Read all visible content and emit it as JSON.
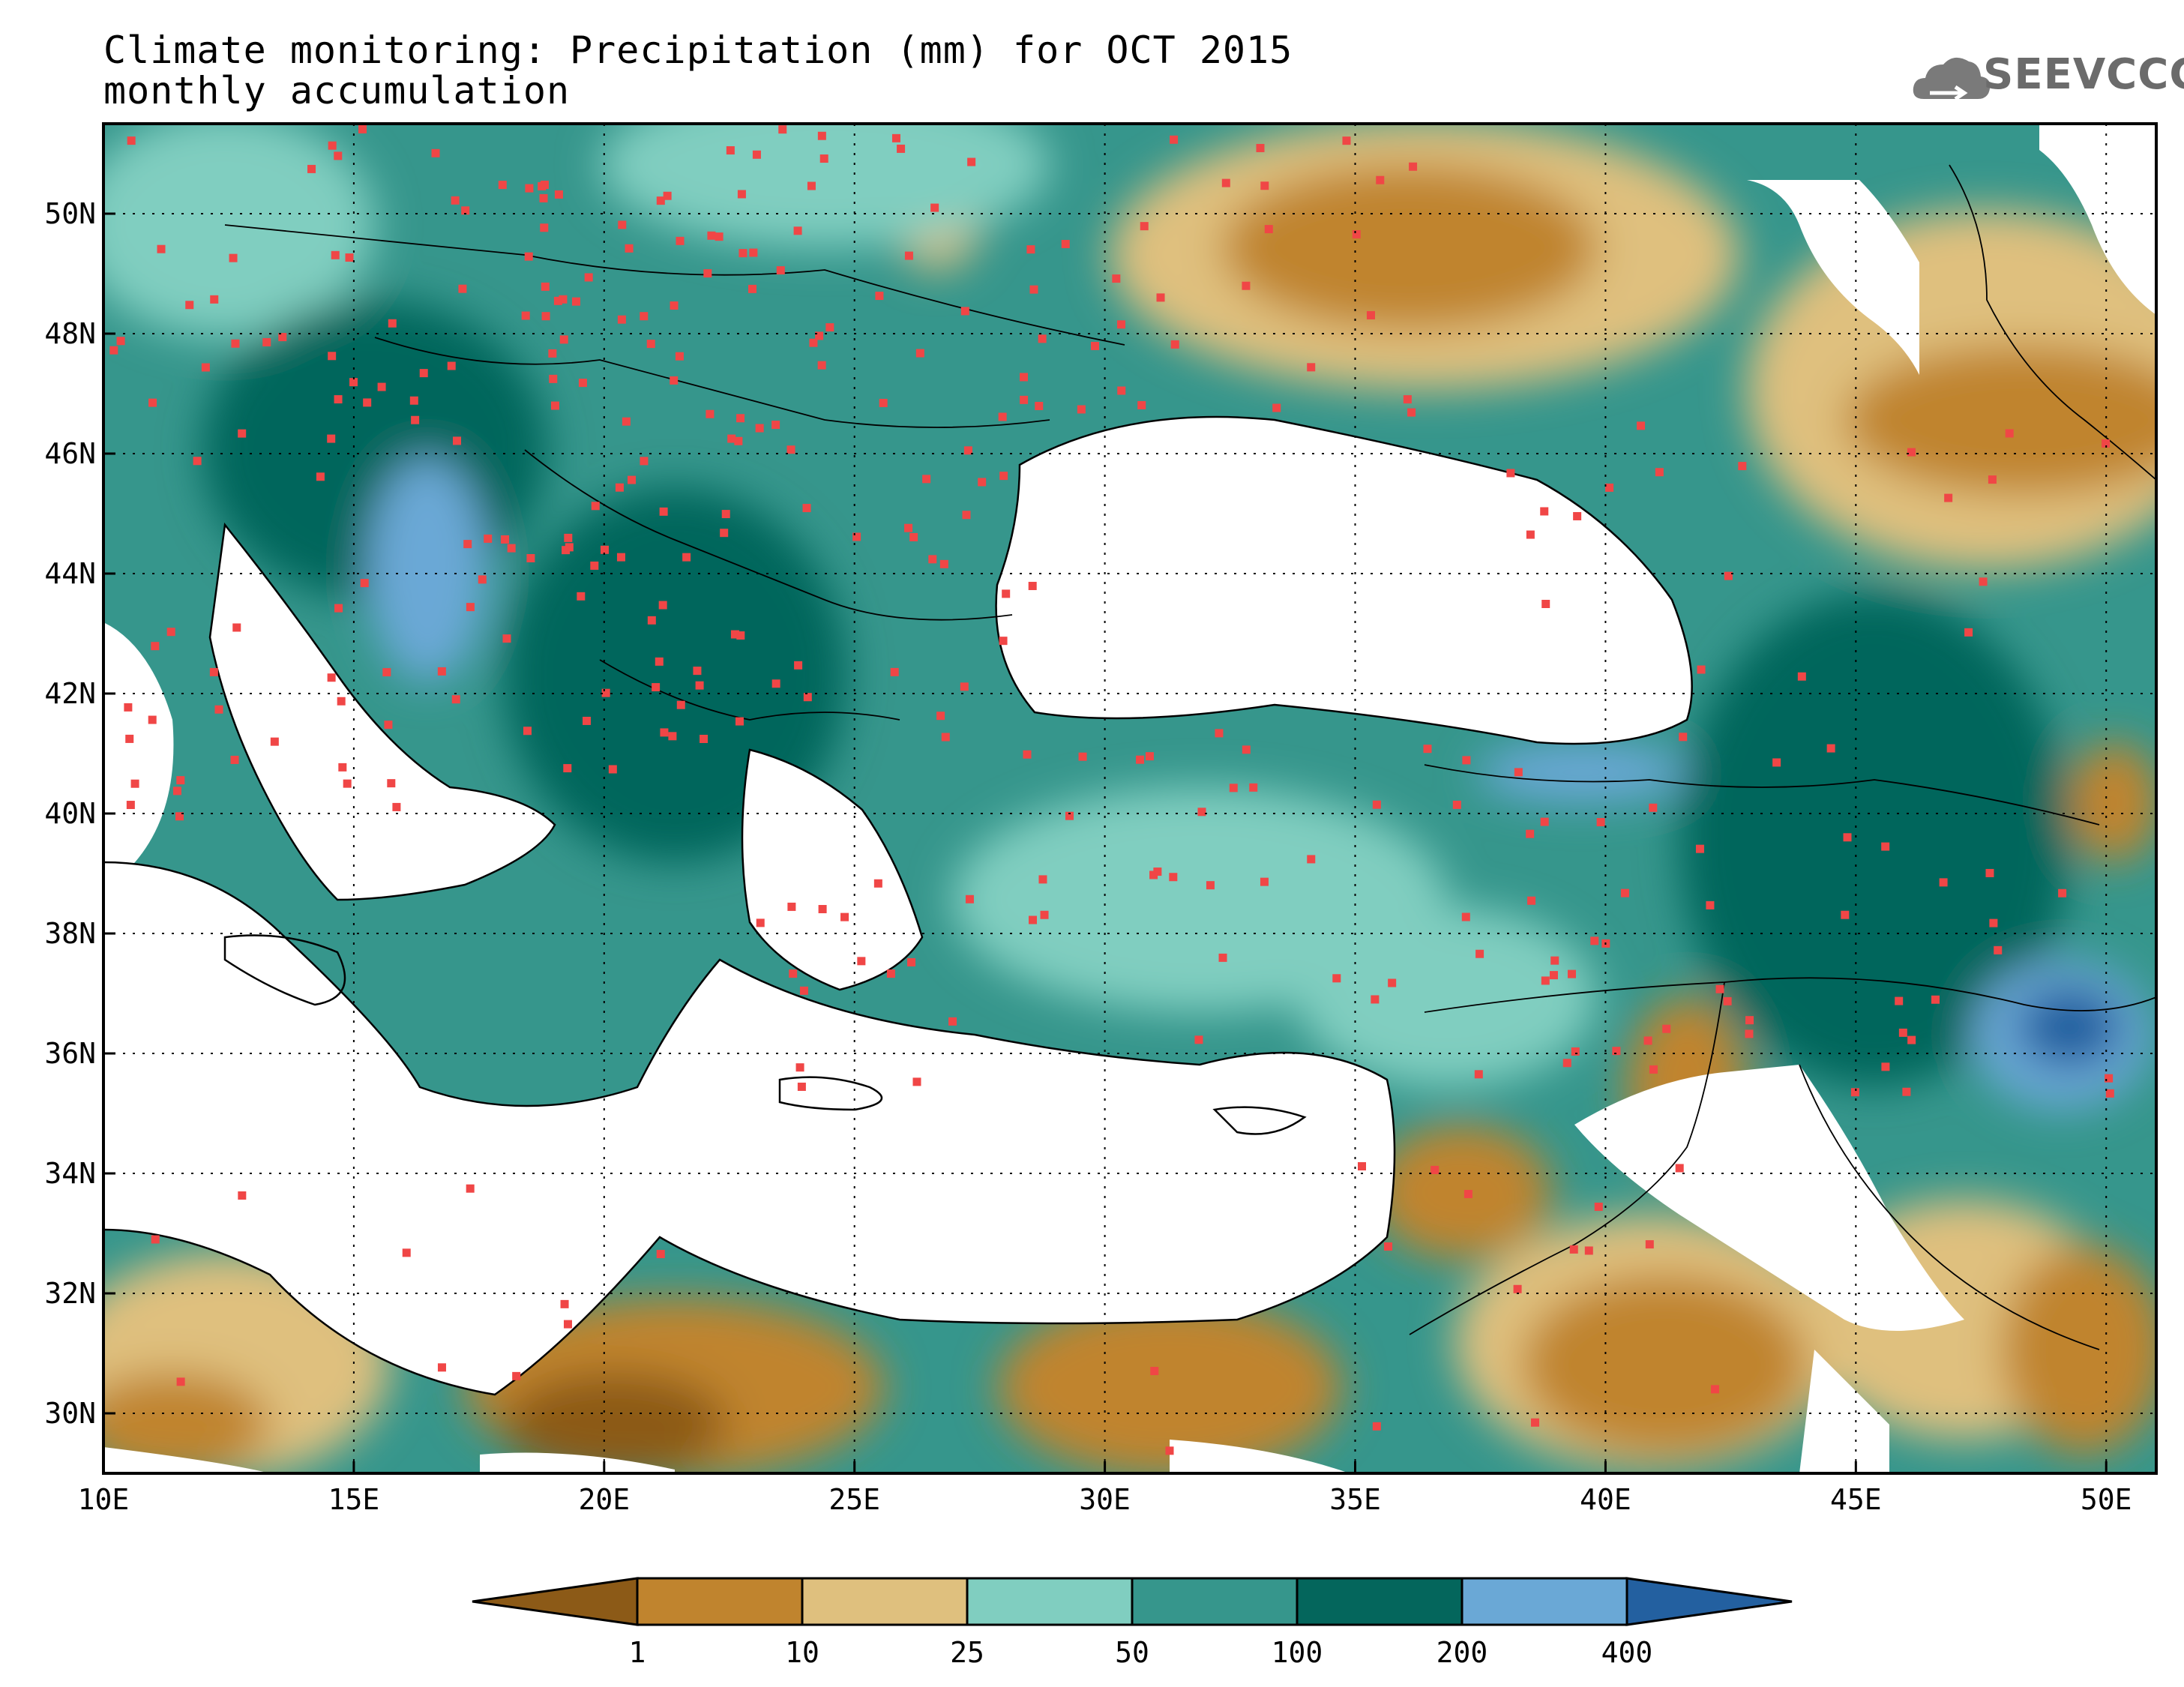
{
  "title": {
    "line1": "Climate monitoring: Precipitation (mm) for OCT 2015",
    "line2": "monthly accumulation"
  },
  "logo": {
    "text": "SEEVCCC",
    "icon": "cloud-icon"
  },
  "map": {
    "lon_range": [
      10,
      51
    ],
    "lat_range": [
      29,
      51.5
    ],
    "x_ticks": [
      "10E",
      "15E",
      "20E",
      "25E",
      "30E",
      "35E",
      "40E",
      "45E",
      "50E"
    ],
    "y_ticks": [
      "30N",
      "32N",
      "34N",
      "36N",
      "38N",
      "40N",
      "42N",
      "44N",
      "46N",
      "48N",
      "50N"
    ],
    "gridlines": "dotted"
  },
  "legend": {
    "boundaries": [
      "1",
      "10",
      "25",
      "50",
      "100",
      "200",
      "400"
    ],
    "colors": [
      "#8c5a17",
      "#c0842e",
      "#dfc07e",
      "#80cec0",
      "#36968c",
      "#04665c",
      "#6aa8d6",
      "#2360a0"
    ]
  },
  "colors": {
    "station_marker": "#f04646",
    "coastline": "#000000"
  }
}
